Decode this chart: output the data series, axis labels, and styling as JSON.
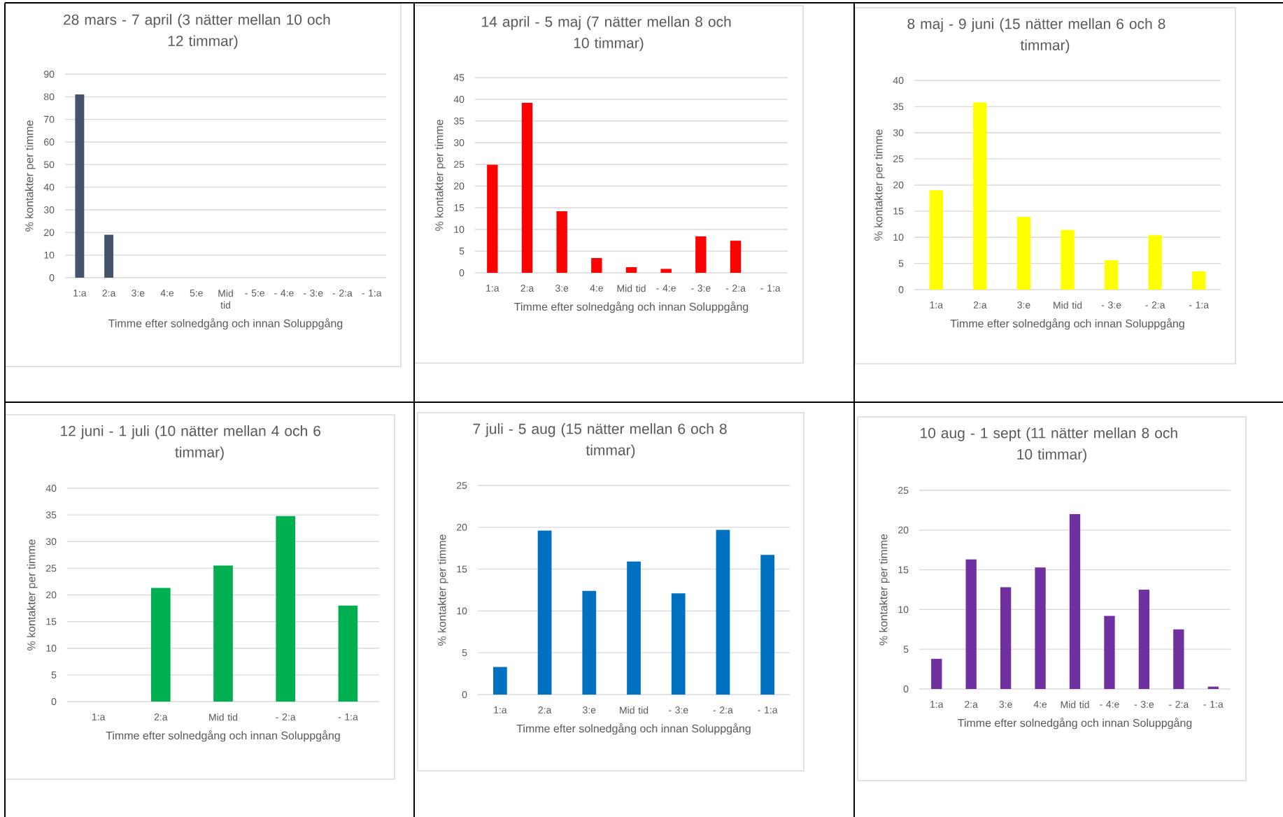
{
  "chart_data": [
    {
      "type": "bar",
      "title": "28 mars - 7 april (3 nätter mellan 10 och 12 timmar)",
      "xlabel": "Timme efter solnedgång och innan Soluppgång",
      "ylabel": "% kontakter per timme",
      "categories": [
        "1:a",
        "2:a",
        "3:e",
        "4:e",
        "5:e",
        "Mid tid",
        "- 5:e",
        "- 4:e",
        "- 3:e",
        "- 2:a",
        "- 1:a"
      ],
      "values": [
        81,
        19,
        0,
        0,
        0,
        0,
        0,
        0,
        0,
        0,
        0
      ],
      "color": "#44546a",
      "ylim": [
        0,
        90
      ],
      "yticks": [
        0,
        10,
        20,
        30,
        40,
        50,
        60,
        70,
        80,
        90
      ],
      "grid": "y"
    },
    {
      "type": "bar",
      "title": "14 april - 5 maj (7 nätter mellan 8 och 10 timmar)",
      "xlabel": "Timme efter solnedgång och innan Soluppgång",
      "ylabel": "% kontakter per timme",
      "categories": [
        "1:a",
        "2:a",
        "3:e",
        "4:e",
        "Mid tid",
        "- 4:e",
        "- 3:e",
        "- 2:a",
        "- 1:a"
      ],
      "values": [
        24.9,
        39.2,
        14.2,
        3.4,
        1.3,
        0.9,
        8.4,
        7.4,
        0
      ],
      "color": "#ff0000",
      "ylim": [
        0,
        45
      ],
      "yticks": [
        0,
        5,
        10,
        15,
        20,
        25,
        30,
        35,
        40,
        45
      ],
      "grid": "y"
    },
    {
      "type": "bar",
      "title": "8 maj - 9 juni (15 nätter mellan 6 och 8 timmar)",
      "xlabel": "Timme efter solnedgång och innan Soluppgång",
      "ylabel": "% kontakter per timme",
      "categories": [
        "1:a",
        "2:a",
        "3:e",
        "Mid tid",
        "- 3:e",
        "- 2:a",
        "- 1:a"
      ],
      "values": [
        19.0,
        35.8,
        13.9,
        11.4,
        5.6,
        10.4,
        3.5
      ],
      "color": "#ffff00",
      "ylim": [
        0,
        40
      ],
      "yticks": [
        0,
        5,
        10,
        15,
        20,
        25,
        30,
        35,
        40
      ],
      "grid": "y"
    },
    {
      "type": "bar",
      "title": "12 juni - 1 juli (10 nätter mellan 4 och 6 timmar)",
      "xlabel": "Timme efter solnedgång och innan Soluppgång",
      "ylabel": "% kontakter per timme",
      "categories": [
        "1:a",
        "2:a",
        "Mid tid",
        "- 2:a",
        "- 1:a"
      ],
      "values": [
        0,
        21.3,
        25.5,
        34.8,
        18.0
      ],
      "color": "#00b050",
      "ylim": [
        0,
        40
      ],
      "yticks": [
        0,
        5,
        10,
        15,
        20,
        25,
        30,
        35,
        40
      ],
      "grid": "y"
    },
    {
      "type": "bar",
      "title": "7 juli - 5 aug (15 nätter mellan 6 och 8 timmar)",
      "xlabel": "Timme efter solnedgång och innan Soluppgång",
      "ylabel": "% kontakter per timme",
      "categories": [
        "1:a",
        "2:a",
        "3:e",
        "Mid tid",
        "- 3:e",
        "- 2:a",
        "- 1:a"
      ],
      "values": [
        3.3,
        19.6,
        12.4,
        15.9,
        12.1,
        19.7,
        16.7
      ],
      "color": "#0070c0",
      "ylim": [
        0,
        25
      ],
      "yticks": [
        0,
        5,
        10,
        15,
        20,
        25
      ],
      "grid": "y"
    },
    {
      "type": "bar",
      "title": "10 aug - 1 sept (11 nätter mellan 8 och 10 timmar)",
      "xlabel": "Timme efter solnedgång och innan Soluppgång",
      "ylabel": "% kontakter per timme",
      "categories": [
        "1:a",
        "2:a",
        "3:e",
        "4:e",
        "Mid tid",
        "- 4:e",
        "- 3:e",
        "- 2:a",
        "- 1:a"
      ],
      "values": [
        3.8,
        16.3,
        12.8,
        15.3,
        22.0,
        9.2,
        12.5,
        7.5,
        0.3
      ],
      "color": "#7030a0",
      "ylim": [
        0,
        25
      ],
      "yticks": [
        0,
        5,
        10,
        15,
        20,
        25
      ],
      "grid": "y"
    }
  ]
}
